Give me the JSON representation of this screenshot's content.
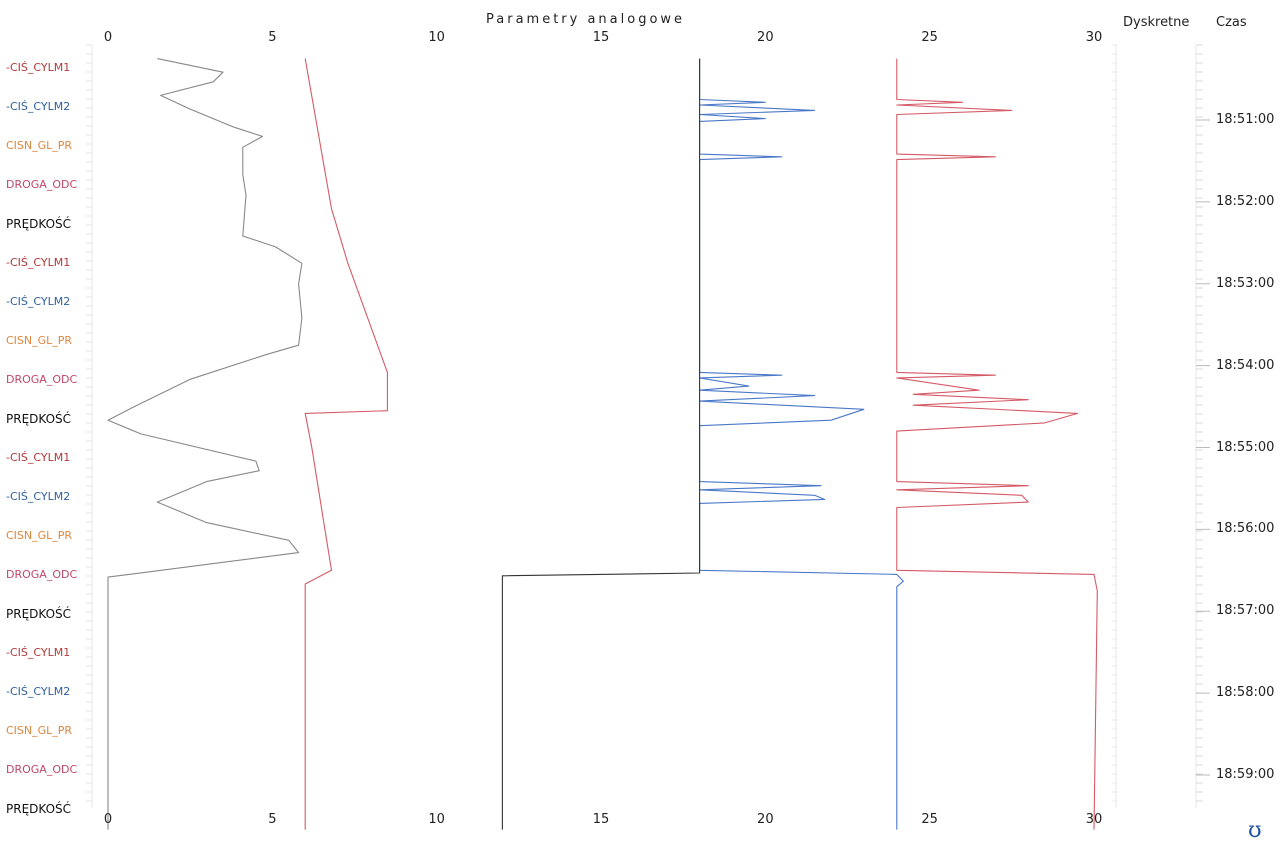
{
  "header": {
    "title": "Parametry analogowe",
    "col_discrete": "Dyskretne",
    "col_time": "Czas"
  },
  "colors": {
    "cis_cylm1": "#b03a3a",
    "cis_cylm2": "#2f5f9e",
    "cisn_gl_pr": "#e0863e",
    "droga_odc": "#c0476a",
    "predkosc": "#111111",
    "gray": "#888888",
    "blue": "#4a78c8",
    "red": "#d45a66",
    "dark": "#333333"
  },
  "legend_labels": [
    {
      "text": "-CIŚ_CYLM1",
      "kind": "cis_cylm1"
    },
    {
      "text": "-CIŚ_CYLM2",
      "kind": "cis_cylm2"
    },
    {
      "text": "CISN_GL_PR",
      "kind": "cisn_gl_pr"
    },
    {
      "text": "DROGA_ODC",
      "kind": "droga_odc"
    },
    {
      "text": "PRĘDKOŚĆ",
      "kind": "predkosc"
    },
    {
      "text": "-CIŚ_CYLM1",
      "kind": "cis_cylm1"
    },
    {
      "text": "-CIŚ_CYLM2",
      "kind": "cis_cylm2"
    },
    {
      "text": "CISN_GL_PR",
      "kind": "cisn_gl_pr"
    },
    {
      "text": "DROGA_ODC",
      "kind": "droga_odc"
    },
    {
      "text": "PRĘDKOŚĆ",
      "kind": "predkosc"
    },
    {
      "text": "-CIŚ_CYLM1",
      "kind": "cis_cylm1"
    },
    {
      "text": "-CIŚ_CYLM2",
      "kind": "cis_cylm2"
    },
    {
      "text": "CISN_GL_PR",
      "kind": "cisn_gl_pr"
    },
    {
      "text": "DROGA_ODC",
      "kind": "droga_odc"
    },
    {
      "text": "PRĘDKOŚĆ",
      "kind": "predkosc"
    },
    {
      "text": "-CIŚ_CYLM1",
      "kind": "cis_cylm1"
    },
    {
      "text": "-CIŚ_CYLM2",
      "kind": "cis_cylm2"
    },
    {
      "text": "CISN_GL_PR",
      "kind": "cisn_gl_pr"
    },
    {
      "text": "DROGA_ODC",
      "kind": "droga_odc"
    },
    {
      "text": "PRĘDKOŚĆ",
      "kind": "predkosc"
    }
  ],
  "chart_data": {
    "type": "line",
    "orientation": "vertical-time",
    "title": "Parametry analogowe",
    "xlim": [
      0,
      30
    ],
    "x_ticks": [
      0,
      5,
      10,
      15,
      20,
      25,
      30
    ],
    "time_labels": [
      "18:51:00",
      "18:52:00",
      "18:53:00",
      "18:54:00",
      "18:55:00",
      "18:56:00",
      "18:57:00",
      "18:58:00",
      "18:59:00"
    ],
    "time_range": [
      "18:50:15",
      "18:59:40"
    ],
    "grid": false,
    "series": [
      {
        "color": "gray",
        "points": [
          {
            "t": "18:50:15",
            "v": 1.5
          },
          {
            "t": "18:50:25",
            "v": 3.5
          },
          {
            "t": "18:50:32",
            "v": 3.2
          },
          {
            "t": "18:50:42",
            "v": 1.6
          },
          {
            "t": "18:50:52",
            "v": 2.5
          },
          {
            "t": "18:51:05",
            "v": 3.8
          },
          {
            "t": "18:51:12",
            "v": 4.7
          },
          {
            "t": "18:51:20",
            "v": 4.1
          },
          {
            "t": "18:51:40",
            "v": 4.1
          },
          {
            "t": "18:51:55",
            "v": 4.2
          },
          {
            "t": "18:52:25",
            "v": 4.1
          },
          {
            "t": "18:52:33",
            "v": 5.1
          },
          {
            "t": "18:52:45",
            "v": 5.9
          },
          {
            "t": "18:53:00",
            "v": 5.8
          },
          {
            "t": "18:53:25",
            "v": 5.9
          },
          {
            "t": "18:53:45",
            "v": 5.8
          },
          {
            "t": "18:53:52",
            "v": 4.8
          },
          {
            "t": "18:54:10",
            "v": 2.5
          },
          {
            "t": "18:54:30",
            "v": 0.8
          },
          {
            "t": "18:54:40",
            "v": 0.0
          },
          {
            "t": "18:54:50",
            "v": 1.0
          },
          {
            "t": "18:55:10",
            "v": 4.5
          },
          {
            "t": "18:55:17",
            "v": 4.6
          },
          {
            "t": "18:55:25",
            "v": 3.0
          },
          {
            "t": "18:55:40",
            "v": 1.5
          },
          {
            "t": "18:55:55",
            "v": 3.0
          },
          {
            "t": "18:56:08",
            "v": 5.5
          },
          {
            "t": "18:56:17",
            "v": 5.8
          },
          {
            "t": "18:56:35",
            "v": 0.0
          },
          {
            "t": "18:59:40",
            "v": 0.0
          }
        ]
      },
      {
        "color": "red",
        "points": [
          {
            "t": "18:50:15",
            "v": 6.0
          },
          {
            "t": "18:52:05",
            "v": 6.8
          },
          {
            "t": "18:52:45",
            "v": 7.3
          },
          {
            "t": "18:54:05",
            "v": 8.5
          },
          {
            "t": "18:54:33",
            "v": 8.5
          },
          {
            "t": "18:54:35",
            "v": 6.0
          },
          {
            "t": "18:55:00",
            "v": 6.2
          },
          {
            "t": "18:56:00",
            "v": 6.6
          },
          {
            "t": "18:56:30",
            "v": 6.8
          },
          {
            "t": "18:56:40",
            "v": 6.0
          },
          {
            "t": "18:59:40",
            "v": 6.0
          }
        ]
      },
      {
        "color": "blue",
        "points": [
          {
            "t": "18:50:15",
            "v": 18.0
          },
          {
            "t": "18:50:45",
            "v": 18.0
          },
          {
            "t": "18:50:47",
            "v": 20.0
          },
          {
            "t": "18:50:49",
            "v": 18.0
          },
          {
            "t": "18:50:53",
            "v": 21.5
          },
          {
            "t": "18:50:56",
            "v": 18.0
          },
          {
            "t": "18:50:59",
            "v": 20.0
          },
          {
            "t": "18:51:01",
            "v": 18.0
          },
          {
            "t": "18:51:25",
            "v": 18.0
          },
          {
            "t": "18:51:27",
            "v": 20.5
          },
          {
            "t": "18:51:29",
            "v": 18.0
          },
          {
            "t": "18:54:05",
            "v": 18.0
          },
          {
            "t": "18:54:07",
            "v": 20.5
          },
          {
            "t": "18:54:09",
            "v": 18.0
          },
          {
            "t": "18:54:15",
            "v": 19.5
          },
          {
            "t": "18:54:18",
            "v": 18.0
          },
          {
            "t": "18:54:22",
            "v": 21.5
          },
          {
            "t": "18:54:26",
            "v": 18.0
          },
          {
            "t": "18:54:32",
            "v": 23.0
          },
          {
            "t": "18:54:40",
            "v": 22.0
          },
          {
            "t": "18:54:44",
            "v": 18.0
          },
          {
            "t": "18:55:25",
            "v": 18.0
          },
          {
            "t": "18:55:28",
            "v": 21.7
          },
          {
            "t": "18:55:31",
            "v": 18.0
          },
          {
            "t": "18:55:35",
            "v": 21.5
          },
          {
            "t": "18:55:38",
            "v": 21.8
          },
          {
            "t": "18:55:41",
            "v": 18.0
          },
          {
            "t": "18:56:30",
            "v": 18.0
          },
          {
            "t": "18:56:33",
            "v": 24.0
          },
          {
            "t": "18:56:38",
            "v": 24.2
          },
          {
            "t": "18:56:42",
            "v": 24.0
          },
          {
            "t": "18:59:40",
            "v": 24.0
          }
        ]
      },
      {
        "color": "dark",
        "points": [
          {
            "t": "18:50:15",
            "v": 18.0
          },
          {
            "t": "18:56:32",
            "v": 18.0
          },
          {
            "t": "18:56:34",
            "v": 12.0
          },
          {
            "t": "18:59:40",
            "v": 12.0
          }
        ]
      },
      {
        "color": "red",
        "points": [
          {
            "t": "18:50:15",
            "v": 24.0
          },
          {
            "t": "18:50:45",
            "v": 24.0
          },
          {
            "t": "18:50:47",
            "v": 26.0
          },
          {
            "t": "18:50:49",
            "v": 24.0
          },
          {
            "t": "18:50:53",
            "v": 27.5
          },
          {
            "t": "18:50:56",
            "v": 24.0
          },
          {
            "t": "18:51:25",
            "v": 24.0
          },
          {
            "t": "18:51:27",
            "v": 27.0
          },
          {
            "t": "18:51:29",
            "v": 24.0
          },
          {
            "t": "18:54:05",
            "v": 24.0
          },
          {
            "t": "18:54:07",
            "v": 27.0
          },
          {
            "t": "18:54:09",
            "v": 24.0
          },
          {
            "t": "18:54:18",
            "v": 26.5
          },
          {
            "t": "18:54:21",
            "v": 24.5
          },
          {
            "t": "18:54:25",
            "v": 28.0
          },
          {
            "t": "18:54:29",
            "v": 24.5
          },
          {
            "t": "18:54:35",
            "v": 29.5
          },
          {
            "t": "18:54:42",
            "v": 28.5
          },
          {
            "t": "18:54:48",
            "v": 24.0
          },
          {
            "t": "18:55:25",
            "v": 24.0
          },
          {
            "t": "18:55:28",
            "v": 28.0
          },
          {
            "t": "18:55:31",
            "v": 24.0
          },
          {
            "t": "18:55:35",
            "v": 27.8
          },
          {
            "t": "18:55:40",
            "v": 28.0
          },
          {
            "t": "18:55:44",
            "v": 24.0
          },
          {
            "t": "18:56:30",
            "v": 24.0
          },
          {
            "t": "18:56:33",
            "v": 30.0
          },
          {
            "t": "18:56:45",
            "v": 30.1
          },
          {
            "t": "18:59:40",
            "v": 30.0
          }
        ]
      }
    ]
  }
}
